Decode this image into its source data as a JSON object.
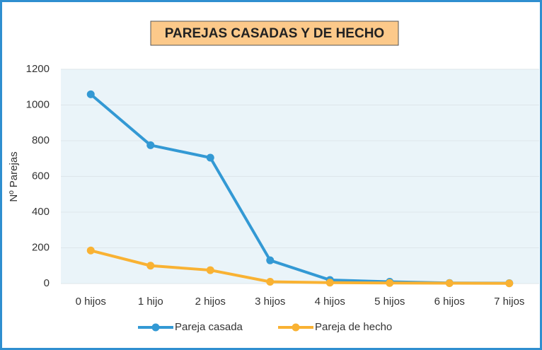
{
  "chart_data": {
    "type": "line",
    "title": "PAREJAS CASADAS Y DE HECHO",
    "y_label": "Nº Parejas",
    "categories": [
      "0 hijos",
      "1 hijo",
      "2 hijos",
      "3 hijos",
      "4 hijos",
      "5 hijos",
      "6 hijos",
      "7 hijos"
    ],
    "series": [
      {
        "name": "Pareja casada",
        "color": "#3399d4",
        "values": [
          1060,
          775,
          705,
          130,
          20,
          10,
          3,
          2
        ]
      },
      {
        "name": "Pareja de hecho",
        "color": "#f9b233",
        "values": [
          185,
          100,
          75,
          10,
          5,
          3,
          2,
          1
        ]
      }
    ],
    "ylim": [
      0,
      1200
    ],
    "yticks": [
      0,
      200,
      400,
      600,
      800,
      1000,
      1200
    ],
    "grid": true,
    "legend": "bottom"
  }
}
